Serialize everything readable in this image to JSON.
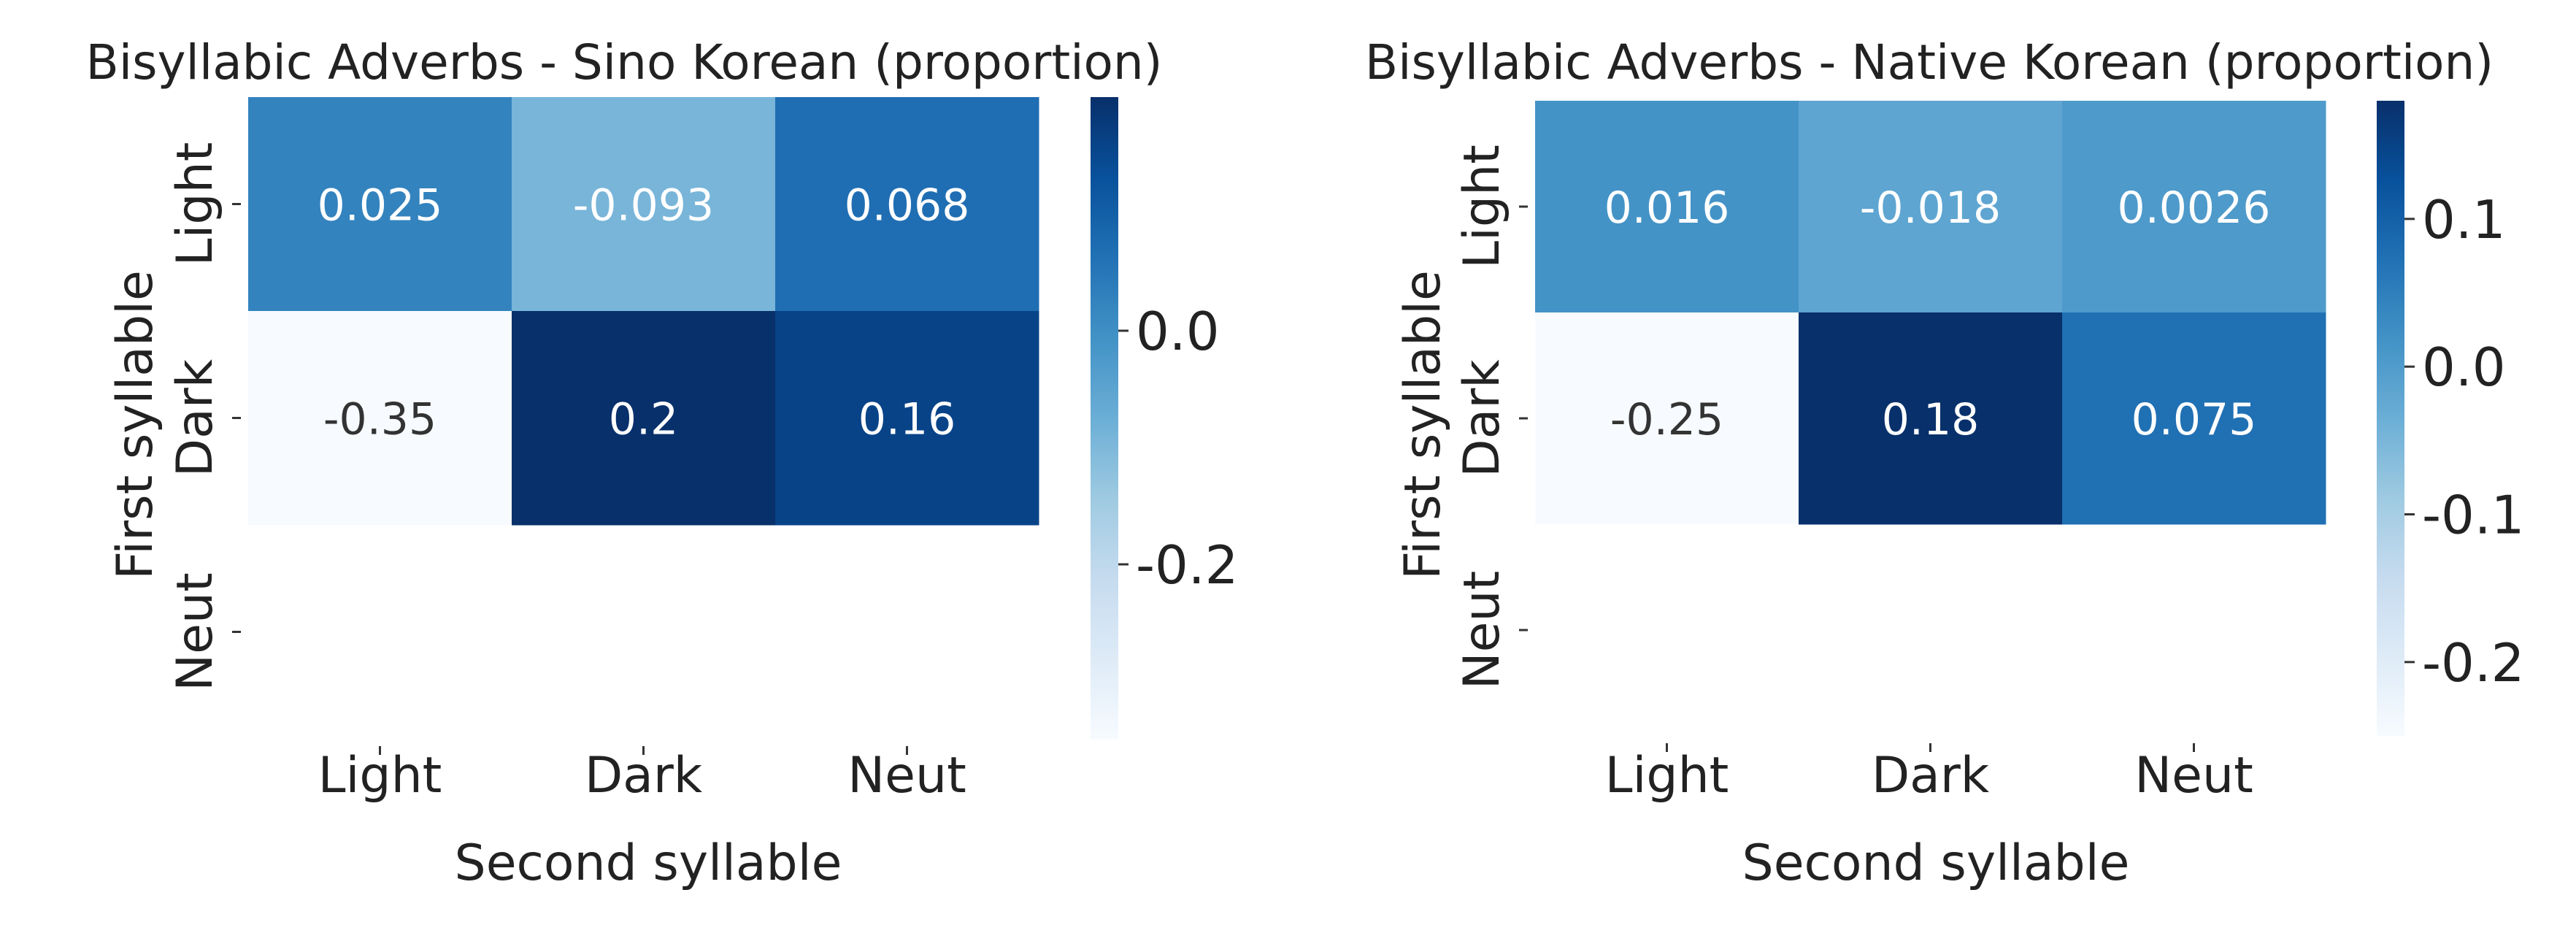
{
  "chart_data": [
    {
      "type": "heatmap",
      "title": "Bisyllabic Adverbs - Sino Korean (proportion)",
      "xlabel": "Second syllable",
      "ylabel": "First syllable",
      "x_categories": [
        "Light",
        "Dark",
        "Neut"
      ],
      "y_categories": [
        "Light",
        "Dark",
        "Neut"
      ],
      "values": [
        [
          0.025,
          -0.093,
          0.068
        ],
        [
          -0.35,
          0.2,
          0.16
        ],
        [
          null,
          null,
          null
        ]
      ],
      "value_labels": [
        [
          "0.025",
          "-0.093",
          "0.068"
        ],
        [
          "-0.35",
          "0.2",
          "0.16"
        ],
        [
          "",
          "",
          ""
        ]
      ],
      "colormap": "Blues",
      "vmin": -0.35,
      "vmax": 0.2,
      "colorbar_ticks": [
        0.0,
        -0.2
      ],
      "colorbar_tick_labels": [
        "0.0",
        "-0.2"
      ]
    },
    {
      "type": "heatmap",
      "title": "Bisyllabic Adverbs - Native Korean (proportion)",
      "xlabel": "Second syllable",
      "ylabel": "First syllable",
      "x_categories": [
        "Light",
        "Dark",
        "Neut"
      ],
      "y_categories": [
        "Light",
        "Dark",
        "Neut"
      ],
      "values": [
        [
          0.016,
          -0.018,
          0.0026
        ],
        [
          -0.25,
          0.18,
          0.075
        ],
        [
          null,
          null,
          null
        ]
      ],
      "value_labels": [
        [
          "0.016",
          "-0.018",
          "0.0026"
        ],
        [
          "-0.25",
          "0.18",
          "0.075"
        ],
        [
          "",
          "",
          ""
        ]
      ],
      "colormap": "Blues",
      "vmin": -0.25,
      "vmax": 0.18,
      "colorbar_ticks": [
        0.1,
        0.0,
        -0.1,
        -0.2
      ],
      "colorbar_tick_labels": [
        "0.1",
        "0.0",
        "-0.1",
        "-0.2"
      ]
    }
  ]
}
